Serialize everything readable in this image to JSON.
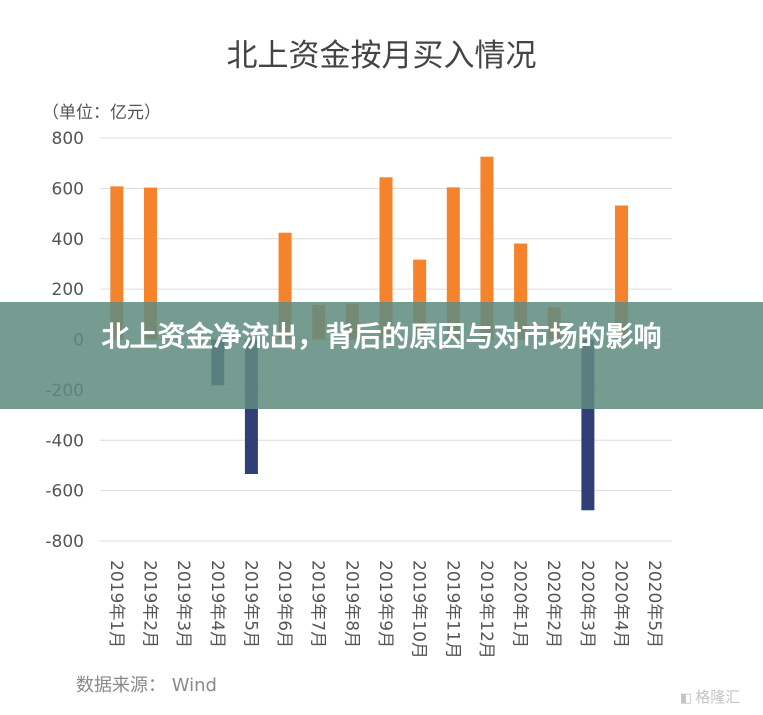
{
  "chart_data": {
    "type": "bar",
    "title": "北上资金按月买入情况",
    "unit_label": "（单位：亿元）",
    "categories": [
      "2019年1月",
      "2019年2月",
      "2019年3月",
      "2019年4月",
      "2019年5月",
      "2019年6月",
      "2019年7月",
      "2019年8月",
      "2019年9月",
      "2019年10月",
      "2019年11月",
      "2019年12月",
      "2020年1月",
      "2020年2月",
      "2020年3月",
      "2020年4月",
      "2020年5月"
    ],
    "values": [
      608,
      603,
      0,
      -182,
      -534,
      424,
      138,
      142,
      644,
      317,
      604,
      726,
      381,
      128,
      -678,
      532,
      0
    ],
    "ylim": [
      -800,
      800
    ],
    "yticks": [
      800,
      600,
      400,
      200,
      0,
      -200,
      -400,
      -600,
      -800
    ],
    "ytick_labels": [
      "800",
      "600",
      "400",
      "200",
      "0",
      "-200",
      "-400",
      "-600",
      "-800"
    ],
    "grid": true,
    "positive_color": "#F5832B",
    "negative_color": "#323E76",
    "source": "数据来源： Wind"
  },
  "banner": {
    "text": "北上资金净流出，背后的原因与对市场的影响"
  },
  "watermark": {
    "text": "格隆汇",
    "icon": "gelonghui-logo-icon"
  }
}
